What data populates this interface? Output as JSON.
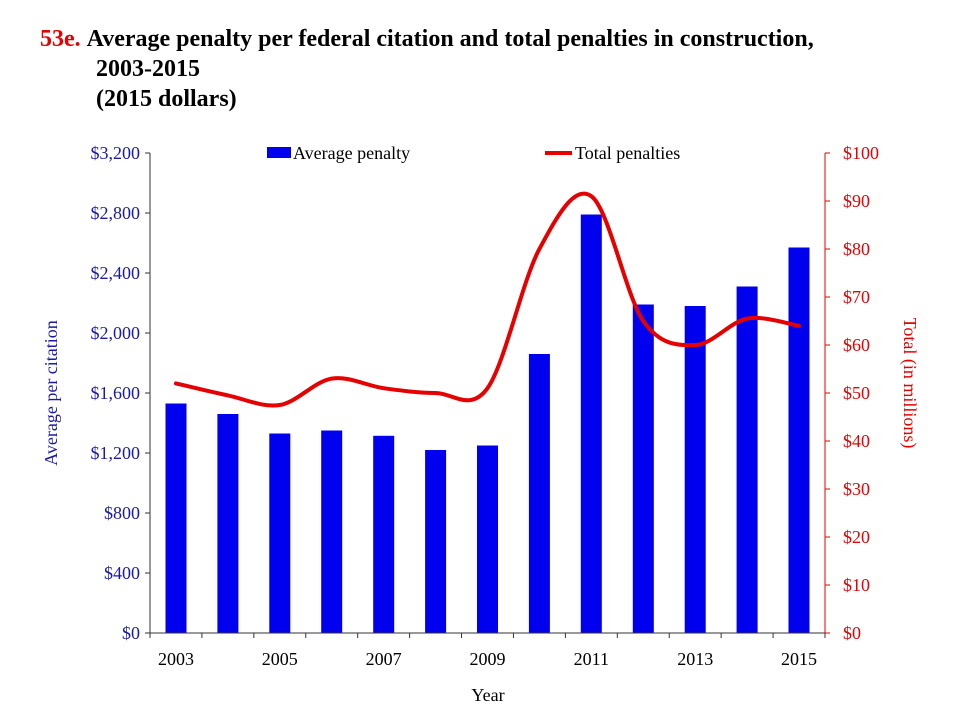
{
  "title": {
    "number": "53e.",
    "line1": "Average penalty per federal citation and total penalties in construction,",
    "line2": "2003-2015",
    "line3": "(2015 dollars)"
  },
  "colors": {
    "bar": "#0000ee",
    "line": "#e60000",
    "left_axis_text": "#1a1aa6",
    "right_axis_text": "#e60000"
  },
  "chart_data": {
    "type": "bar",
    "title": "Average penalty per federal citation and total penalties in construction, 2003-2015 (2015 dollars)",
    "xlabel": "Year",
    "ylabel": "Average per citation",
    "y2label": "Total (in millions)",
    "x": [
      2003,
      2004,
      2005,
      2006,
      2007,
      2008,
      2009,
      2010,
      2011,
      2012,
      2013,
      2014,
      2015
    ],
    "x_tick_labels": [
      "2003",
      "2005",
      "2007",
      "2009",
      "2011",
      "2013",
      "2015"
    ],
    "ylim": [
      0,
      3200
    ],
    "y_ticks": [
      "$0",
      "$400",
      "$800",
      "$1,200",
      "$1,600",
      "$2,000",
      "$2,400",
      "$2,800",
      "$3,200"
    ],
    "y2lim": [
      0,
      100
    ],
    "y2_ticks": [
      "$0",
      "$10",
      "$20",
      "$30",
      "$40",
      "$50",
      "$60",
      "$70",
      "$80",
      "$90",
      "$100"
    ],
    "legend_position": "top",
    "grid": false,
    "series": [
      {
        "name": "Average penalty",
        "type": "bar",
        "axis": "left",
        "values": [
          1530,
          1460,
          1330,
          1350,
          1315,
          1220,
          1250,
          1860,
          2790,
          2190,
          2180,
          2310,
          2570
        ]
      },
      {
        "name": "Total penalties",
        "type": "line",
        "axis": "right",
        "smooth": true,
        "values": [
          52,
          49.5,
          47.5,
          53,
          51,
          50,
          51,
          80,
          91,
          65,
          60,
          65.5,
          64
        ]
      }
    ]
  }
}
